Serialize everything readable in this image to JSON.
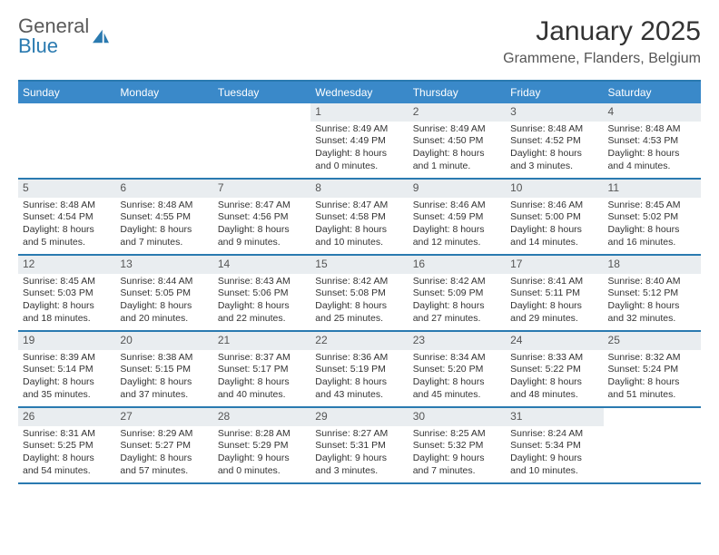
{
  "brand": {
    "word1": "General",
    "word2": "Blue"
  },
  "title": "January 2025",
  "location": "Grammene, Flanders, Belgium",
  "colors": {
    "header_bg": "#3a89c9",
    "header_border": "#2a7ab0",
    "date_bar_bg": "#e9edf0",
    "text": "#333333",
    "brand_gray": "#5a5a5a",
    "brand_blue": "#2a7ab0"
  },
  "layout": {
    "start_day_index": 3,
    "days_in_month": 31,
    "day_names": [
      "Sunday",
      "Monday",
      "Tuesday",
      "Wednesday",
      "Thursday",
      "Friday",
      "Saturday"
    ]
  },
  "days": [
    {
      "date": "1",
      "sunrise": "Sunrise: 8:49 AM",
      "sunset": "Sunset: 4:49 PM",
      "daylight1": "Daylight: 8 hours",
      "daylight2": "and 0 minutes."
    },
    {
      "date": "2",
      "sunrise": "Sunrise: 8:49 AM",
      "sunset": "Sunset: 4:50 PM",
      "daylight1": "Daylight: 8 hours",
      "daylight2": "and 1 minute."
    },
    {
      "date": "3",
      "sunrise": "Sunrise: 8:48 AM",
      "sunset": "Sunset: 4:52 PM",
      "daylight1": "Daylight: 8 hours",
      "daylight2": "and 3 minutes."
    },
    {
      "date": "4",
      "sunrise": "Sunrise: 8:48 AM",
      "sunset": "Sunset: 4:53 PM",
      "daylight1": "Daylight: 8 hours",
      "daylight2": "and 4 minutes."
    },
    {
      "date": "5",
      "sunrise": "Sunrise: 8:48 AM",
      "sunset": "Sunset: 4:54 PM",
      "daylight1": "Daylight: 8 hours",
      "daylight2": "and 5 minutes."
    },
    {
      "date": "6",
      "sunrise": "Sunrise: 8:48 AM",
      "sunset": "Sunset: 4:55 PM",
      "daylight1": "Daylight: 8 hours",
      "daylight2": "and 7 minutes."
    },
    {
      "date": "7",
      "sunrise": "Sunrise: 8:47 AM",
      "sunset": "Sunset: 4:56 PM",
      "daylight1": "Daylight: 8 hours",
      "daylight2": "and 9 minutes."
    },
    {
      "date": "8",
      "sunrise": "Sunrise: 8:47 AM",
      "sunset": "Sunset: 4:58 PM",
      "daylight1": "Daylight: 8 hours",
      "daylight2": "and 10 minutes."
    },
    {
      "date": "9",
      "sunrise": "Sunrise: 8:46 AM",
      "sunset": "Sunset: 4:59 PM",
      "daylight1": "Daylight: 8 hours",
      "daylight2": "and 12 minutes."
    },
    {
      "date": "10",
      "sunrise": "Sunrise: 8:46 AM",
      "sunset": "Sunset: 5:00 PM",
      "daylight1": "Daylight: 8 hours",
      "daylight2": "and 14 minutes."
    },
    {
      "date": "11",
      "sunrise": "Sunrise: 8:45 AM",
      "sunset": "Sunset: 5:02 PM",
      "daylight1": "Daylight: 8 hours",
      "daylight2": "and 16 minutes."
    },
    {
      "date": "12",
      "sunrise": "Sunrise: 8:45 AM",
      "sunset": "Sunset: 5:03 PM",
      "daylight1": "Daylight: 8 hours",
      "daylight2": "and 18 minutes."
    },
    {
      "date": "13",
      "sunrise": "Sunrise: 8:44 AM",
      "sunset": "Sunset: 5:05 PM",
      "daylight1": "Daylight: 8 hours",
      "daylight2": "and 20 minutes."
    },
    {
      "date": "14",
      "sunrise": "Sunrise: 8:43 AM",
      "sunset": "Sunset: 5:06 PM",
      "daylight1": "Daylight: 8 hours",
      "daylight2": "and 22 minutes."
    },
    {
      "date": "15",
      "sunrise": "Sunrise: 8:42 AM",
      "sunset": "Sunset: 5:08 PM",
      "daylight1": "Daylight: 8 hours",
      "daylight2": "and 25 minutes."
    },
    {
      "date": "16",
      "sunrise": "Sunrise: 8:42 AM",
      "sunset": "Sunset: 5:09 PM",
      "daylight1": "Daylight: 8 hours",
      "daylight2": "and 27 minutes."
    },
    {
      "date": "17",
      "sunrise": "Sunrise: 8:41 AM",
      "sunset": "Sunset: 5:11 PM",
      "daylight1": "Daylight: 8 hours",
      "daylight2": "and 29 minutes."
    },
    {
      "date": "18",
      "sunrise": "Sunrise: 8:40 AM",
      "sunset": "Sunset: 5:12 PM",
      "daylight1": "Daylight: 8 hours",
      "daylight2": "and 32 minutes."
    },
    {
      "date": "19",
      "sunrise": "Sunrise: 8:39 AM",
      "sunset": "Sunset: 5:14 PM",
      "daylight1": "Daylight: 8 hours",
      "daylight2": "and 35 minutes."
    },
    {
      "date": "20",
      "sunrise": "Sunrise: 8:38 AM",
      "sunset": "Sunset: 5:15 PM",
      "daylight1": "Daylight: 8 hours",
      "daylight2": "and 37 minutes."
    },
    {
      "date": "21",
      "sunrise": "Sunrise: 8:37 AM",
      "sunset": "Sunset: 5:17 PM",
      "daylight1": "Daylight: 8 hours",
      "daylight2": "and 40 minutes."
    },
    {
      "date": "22",
      "sunrise": "Sunrise: 8:36 AM",
      "sunset": "Sunset: 5:19 PM",
      "daylight1": "Daylight: 8 hours",
      "daylight2": "and 43 minutes."
    },
    {
      "date": "23",
      "sunrise": "Sunrise: 8:34 AM",
      "sunset": "Sunset: 5:20 PM",
      "daylight1": "Daylight: 8 hours",
      "daylight2": "and 45 minutes."
    },
    {
      "date": "24",
      "sunrise": "Sunrise: 8:33 AM",
      "sunset": "Sunset: 5:22 PM",
      "daylight1": "Daylight: 8 hours",
      "daylight2": "and 48 minutes."
    },
    {
      "date": "25",
      "sunrise": "Sunrise: 8:32 AM",
      "sunset": "Sunset: 5:24 PM",
      "daylight1": "Daylight: 8 hours",
      "daylight2": "and 51 minutes."
    },
    {
      "date": "26",
      "sunrise": "Sunrise: 8:31 AM",
      "sunset": "Sunset: 5:25 PM",
      "daylight1": "Daylight: 8 hours",
      "daylight2": "and 54 minutes."
    },
    {
      "date": "27",
      "sunrise": "Sunrise: 8:29 AM",
      "sunset": "Sunset: 5:27 PM",
      "daylight1": "Daylight: 8 hours",
      "daylight2": "and 57 minutes."
    },
    {
      "date": "28",
      "sunrise": "Sunrise: 8:28 AM",
      "sunset": "Sunset: 5:29 PM",
      "daylight1": "Daylight: 9 hours",
      "daylight2": "and 0 minutes."
    },
    {
      "date": "29",
      "sunrise": "Sunrise: 8:27 AM",
      "sunset": "Sunset: 5:31 PM",
      "daylight1": "Daylight: 9 hours",
      "daylight2": "and 3 minutes."
    },
    {
      "date": "30",
      "sunrise": "Sunrise: 8:25 AM",
      "sunset": "Sunset: 5:32 PM",
      "daylight1": "Daylight: 9 hours",
      "daylight2": "and 7 minutes."
    },
    {
      "date": "31",
      "sunrise": "Sunrise: 8:24 AM",
      "sunset": "Sunset: 5:34 PM",
      "daylight1": "Daylight: 9 hours",
      "daylight2": "and 10 minutes."
    }
  ]
}
